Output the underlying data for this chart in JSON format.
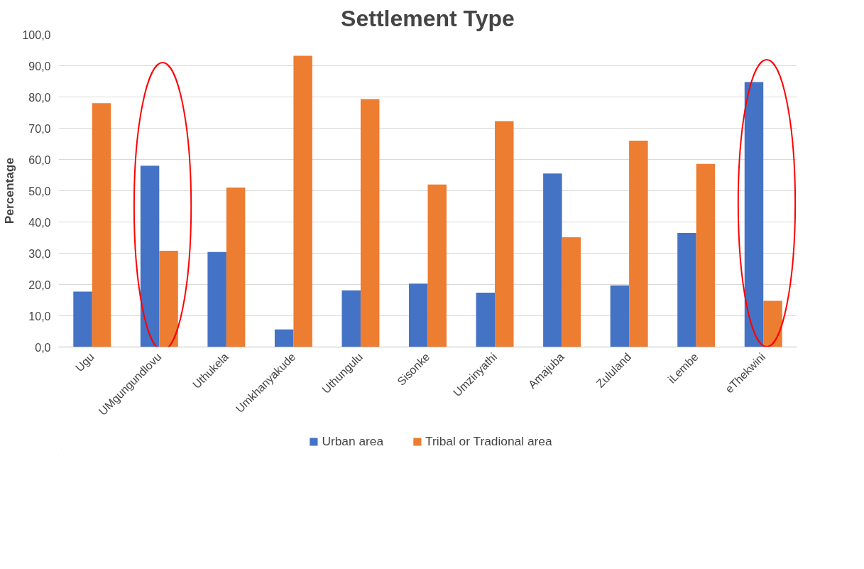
{
  "chart_data": {
    "type": "bar",
    "title": "Settlement Type",
    "ylabel": "Percentage",
    "categories": [
      "Ugu",
      "UMgungundlovu",
      "Uthukela",
      "Umkhanyakude",
      "Uthungulu",
      "Sisonke",
      "Umzinyathi",
      "Amajuba",
      "Zululand",
      "iLembe",
      "eThekwini"
    ],
    "series": [
      {
        "name": "Urban area",
        "color": "#4472c4",
        "values": [
          17.7,
          58.0,
          30.4,
          5.6,
          18.1,
          20.3,
          17.4,
          55.5,
          19.7,
          36.5,
          84.8
        ]
      },
      {
        "name": "Tribal or Tradional area",
        "color": "#ed7d31",
        "values": [
          78.0,
          30.8,
          51.0,
          93.2,
          79.3,
          52.0,
          72.3,
          35.1,
          66.0,
          58.6,
          14.8
        ]
      }
    ],
    "ylim": [
      0,
      100
    ],
    "yticks": [
      {
        "value": 0,
        "label": "0,0"
      },
      {
        "value": 10,
        "label": "10,0"
      },
      {
        "value": 20,
        "label": "20,0"
      },
      {
        "value": 30,
        "label": "30,0"
      },
      {
        "value": 40,
        "label": "40,0"
      },
      {
        "value": 50,
        "label": "50,0"
      },
      {
        "value": 60,
        "label": "60,0"
      },
      {
        "value": 70,
        "label": "70,0"
      },
      {
        "value": 80,
        "label": "80,0"
      },
      {
        "value": 90,
        "label": "90,0"
      },
      {
        "value": 100,
        "label": "100,0"
      }
    ],
    "grid": "y",
    "legend": "bottom"
  }
}
